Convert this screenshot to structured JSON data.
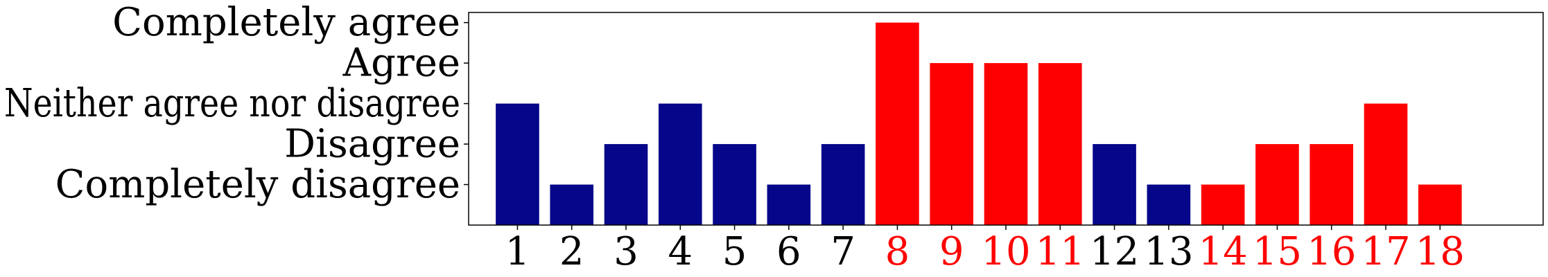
{
  "chart_data": {
    "type": "bar",
    "categories": [
      "1",
      "2",
      "3",
      "4",
      "5",
      "6",
      "7",
      "8",
      "9",
      "10",
      "11",
      "12",
      "13",
      "14",
      "15",
      "16",
      "17",
      "18"
    ],
    "values": [
      3,
      1,
      2,
      3,
      2,
      1,
      2,
      5,
      4,
      4,
      4,
      2,
      1,
      1,
      2,
      2,
      3,
      1
    ],
    "highlighted": [
      false,
      false,
      false,
      false,
      false,
      false,
      false,
      true,
      true,
      true,
      true,
      false,
      false,
      true,
      true,
      true,
      true,
      true
    ],
    "y_tick_values": [
      1,
      2,
      3,
      4,
      5
    ],
    "y_tick_labels": [
      "Completely disagree",
      "Disagree",
      "Neither agree nor disagree",
      "Agree",
      "Completely agree"
    ],
    "ylim": [
      0,
      5.25
    ],
    "xlim": [
      0.1,
      19.9
    ],
    "grid": false,
    "colors": {
      "default_bar": "#06068a",
      "highlight_bar": "#ff0000",
      "default_tick_text": "#000000",
      "highlight_tick_text": "#ff0000",
      "axes": "#000000"
    }
  }
}
